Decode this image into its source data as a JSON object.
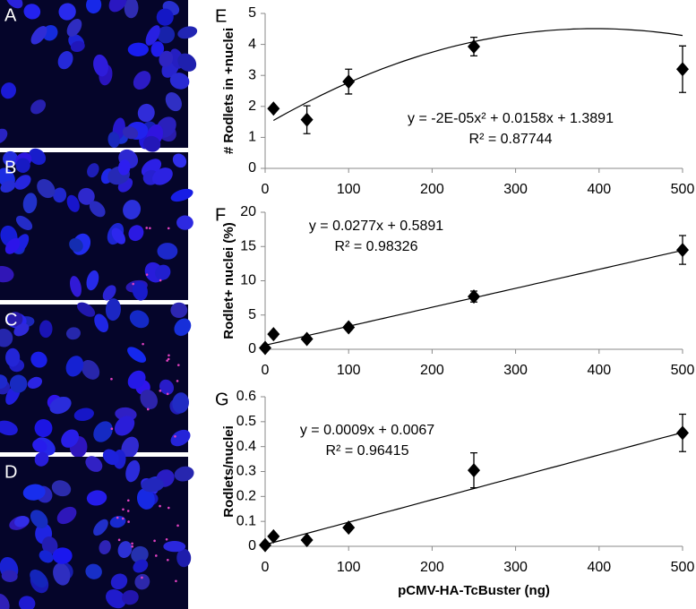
{
  "micrographs": {
    "labels": [
      "A",
      "B",
      "C",
      "D"
    ]
  },
  "chart_data": [
    {
      "type": "scatter",
      "label": "E",
      "ylabel": "# Rodlets in +nuclei",
      "x": [
        10,
        50,
        100,
        250,
        500
      ],
      "values": [
        1.93,
        1.57,
        2.8,
        3.93,
        3.2
      ],
      "errors": [
        null,
        0.45,
        0.4,
        0.3,
        0.75
      ],
      "color": "#000000",
      "xlim": [
        0,
        500
      ],
      "xticks": [
        0,
        100,
        200,
        300,
        400,
        500
      ],
      "ylim": [
        0,
        5
      ],
      "yticks": [
        0,
        1,
        2,
        3,
        4,
        5
      ],
      "trend": {
        "kind": "poly",
        "coefficients": [
          -2e-05,
          0.0158,
          1.3891
        ],
        "equation": "y = -2E-05x² + 0.0158x + 1.3891",
        "r2": "R² = 0.87744"
      }
    },
    {
      "type": "scatter",
      "label": "F",
      "ylabel": "Rodlet+ nuclei (%)",
      "x": [
        0,
        10,
        50,
        100,
        250,
        500
      ],
      "values": [
        0.2,
        2.2,
        1.5,
        3.2,
        7.7,
        14.5
      ],
      "errors": [
        null,
        0.4,
        0.3,
        0.4,
        0.8,
        2.1
      ],
      "color": "#000000",
      "xlim": [
        0,
        500
      ],
      "xticks": [
        0,
        100,
        200,
        300,
        400,
        500
      ],
      "ylim": [
        0,
        20
      ],
      "yticks": [
        0,
        5,
        10,
        15,
        20
      ],
      "trend": {
        "kind": "linear",
        "coefficients": [
          0.0277,
          0.5891
        ],
        "equation": "y = 0.0277x + 0.5891",
        "r2": "R² = 0.98326"
      }
    },
    {
      "type": "scatter",
      "label": "G",
      "ylabel": "Rodlets/nuclei",
      "xlabel": "pCMV-HA-TcBuster (ng)",
      "x": [
        0,
        10,
        50,
        100,
        250,
        500
      ],
      "values": [
        0.005,
        0.04,
        0.025,
        0.075,
        0.305,
        0.455
      ],
      "errors": [
        null,
        null,
        null,
        null,
        0.07,
        0.075
      ],
      "color": "#000000",
      "xlim": [
        0,
        500
      ],
      "xticks": [
        0,
        100,
        200,
        300,
        400,
        500
      ],
      "ylim": [
        0,
        0.6
      ],
      "yticks": [
        0,
        0.1,
        0.2,
        0.3,
        0.4,
        0.5,
        0.6
      ],
      "trend": {
        "kind": "linear",
        "coefficients": [
          0.0009,
          0.0067
        ],
        "equation": "y = 0.0009x + 0.0067",
        "r2": "R² = 0.96415"
      }
    }
  ]
}
